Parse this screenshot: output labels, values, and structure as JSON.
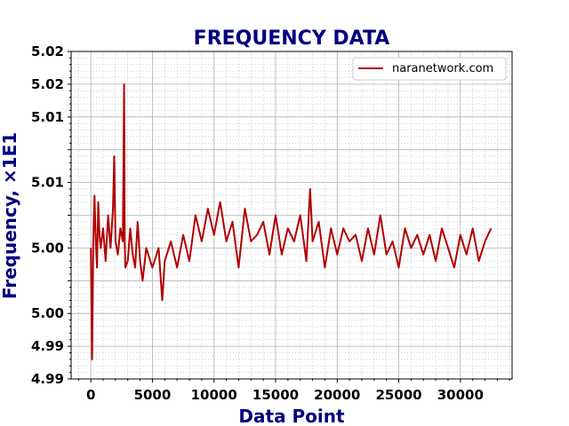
{
  "chart_data": {
    "type": "line",
    "title": "FREQUENCY DATA",
    "xlabel": "Data Point",
    "ylabel": "Frequency, ×1E1",
    "xlim": [
      -1600,
      34200
    ],
    "ylim": [
      4.99,
      5.015
    ],
    "x_ticks": [
      0,
      5000,
      10000,
      15000,
      20000,
      25000,
      30000
    ],
    "x_tick_labels": [
      "0",
      "5000",
      "10000",
      "15000",
      "20000",
      "25000",
      "30000"
    ],
    "y_ticks": [
      4.99,
      4.9925,
      4.995,
      4.9975,
      5.0,
      5.0025,
      5.005,
      5.0075,
      5.01,
      5.0125,
      5.015
    ],
    "y_tick_labels": [
      "4.99",
      "4.99",
      "5.00",
      "",
      "5.00",
      "",
      "5.01",
      "",
      "5.01",
      "5.02",
      "5.02"
    ],
    "y_tick_labels_shown": [
      "4.99",
      "4.99",
      "5.00",
      "5.00",
      "5.01",
      "5.01",
      "5.02",
      "5.02"
    ],
    "grid": true,
    "minor_grid": true,
    "legend_position": "top-right",
    "series": [
      {
        "name": "naranetwork.com",
        "color": "#b30000",
        "x": [
          0,
          100,
          200,
          300,
          400,
          500,
          600,
          700,
          800,
          1000,
          1200,
          1400,
          1600,
          1800,
          1900,
          2000,
          2200,
          2400,
          2600,
          2700,
          2750,
          2800,
          3000,
          3200,
          3400,
          3600,
          3800,
          4000,
          4200,
          4500,
          5000,
          5500,
          5800,
          6000,
          6500,
          7000,
          7500,
          8000,
          8500,
          9000,
          9500,
          10000,
          10500,
          11000,
          11500,
          12000,
          12500,
          13000,
          13500,
          14000,
          14500,
          15000,
          15500,
          16000,
          16500,
          17000,
          17500,
          17800,
          18000,
          18500,
          19000,
          19500,
          20000,
          20500,
          21000,
          21500,
          22000,
          22500,
          23000,
          23500,
          24000,
          24500,
          25000,
          25500,
          26000,
          26500,
          27000,
          27500,
          28000,
          28500,
          29000,
          29500,
          30000,
          30500,
          31000,
          31500,
          32000,
          32500
        ],
        "values": [
          5.0,
          4.9915,
          5.0005,
          5.004,
          5.0005,
          4.9985,
          5.0035,
          5.001,
          5.0,
          5.0015,
          4.999,
          5.0025,
          5.0,
          5.003,
          5.007,
          5.0005,
          4.9995,
          5.0015,
          5.0005,
          5.0125,
          5.0005,
          4.9985,
          4.999,
          5.0015,
          4.9995,
          4.9985,
          5.002,
          4.999,
          4.9975,
          5.0,
          4.9985,
          5.0,
          4.996,
          4.999,
          5.0005,
          4.9985,
          5.001,
          4.999,
          5.0025,
          5.0005,
          5.003,
          5.001,
          5.0035,
          5.0005,
          5.002,
          4.9985,
          5.003,
          5.0005,
          5.001,
          5.002,
          4.9995,
          5.0025,
          4.9995,
          5.0015,
          5.0005,
          5.0025,
          4.999,
          5.0045,
          5.0005,
          5.002,
          4.9985,
          5.0015,
          4.9995,
          5.0015,
          5.0005,
          5.001,
          4.999,
          5.0015,
          4.9995,
          5.0025,
          4.9995,
          5.0005,
          4.9985,
          5.0015,
          5.0,
          5.001,
          4.9995,
          5.001,
          4.999,
          5.0015,
          5.0,
          4.9985,
          5.001,
          4.9995,
          5.0015,
          4.999,
          5.0005,
          5.0015
        ]
      }
    ]
  }
}
